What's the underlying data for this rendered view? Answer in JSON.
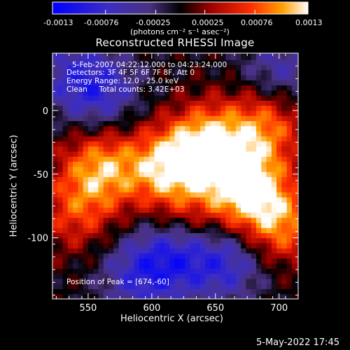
{
  "colorbar": {
    "tick_labels": [
      "-0.0013",
      "-0.00076",
      "-0.00025",
      "0.00025",
      "0.00076",
      "0.0013"
    ],
    "units": "(photons cm⁻² s⁻¹ asec⁻²)"
  },
  "title": "Reconstructed RHESSI Image",
  "info": {
    "line1": "5-Feb-2007 04:22:12.000 to 04:23:24.000",
    "line2": "Detectors: 3F 4F 5F 6F 7F 8F, Att 0",
    "line3": "Energy Range: 12.0 - 25.0 keV",
    "line4": "Clean     Total counts: 3.42E+03",
    "peak": "Position of Peak = [674,-60]"
  },
  "timestamp": "5-May-2022 17:45",
  "colors": {
    "background": "#000000",
    "axes": "#ffffff",
    "colormap": [
      "#0000ff",
      "#3d2ec2",
      "#5a3aa8",
      "#000000",
      "#a00000",
      "#ff3000",
      "#ffa000",
      "#ffffff"
    ]
  },
  "chart_data": {
    "type": "heatmap",
    "title": "Reconstructed RHESSI Image",
    "xlabel": "Heliocentric X (arcsec)",
    "ylabel": "Heliocentric Y (arcsec)",
    "xlim": [
      522,
      715
    ],
    "ylim": [
      -148,
      45
    ],
    "x_ticks": [
      550,
      600,
      650,
      700
    ],
    "y_ticks": [
      0,
      -50,
      -100
    ],
    "peak": [
      674,
      -60
    ],
    "value_range": [
      -0.0013,
      0.0013
    ],
    "colorbar_ticks": [
      -0.0013,
      -0.00076,
      -0.00025,
      0.00025,
      0.00076,
      0.0013
    ],
    "colormap": "blue-purple-black-red-orange-yellow-white",
    "hot_regions": [
      {
        "x": 674,
        "y": -60,
        "value": 0.0013
      },
      {
        "x": 645,
        "y": -27,
        "value": 0.0012
      },
      {
        "x": 612,
        "y": -45,
        "value": 0.0011
      },
      {
        "x": 560,
        "y": -45,
        "value": 0.001
      },
      {
        "x": 700,
        "y": -90,
        "value": 0.0009
      },
      {
        "x": 690,
        "y": -10,
        "value": 0.00085
      },
      {
        "x": 540,
        "y": -80,
        "value": 0.0006
      },
      {
        "x": 630,
        "y": -90,
        "value": 0.0005
      }
    ],
    "cold_regions": [
      {
        "x": 620,
        "y": -112,
        "value": -0.0009
      },
      {
        "x": 660,
        "y": -118,
        "value": -0.0008
      },
      {
        "x": 560,
        "y": 15,
        "value": -0.0007
      },
      {
        "x": 700,
        "y": 30,
        "value": -0.0006
      },
      {
        "x": 590,
        "y": -130,
        "value": -0.0007
      },
      {
        "x": 535,
        "y": 30,
        "value": -0.0005
      }
    ]
  }
}
